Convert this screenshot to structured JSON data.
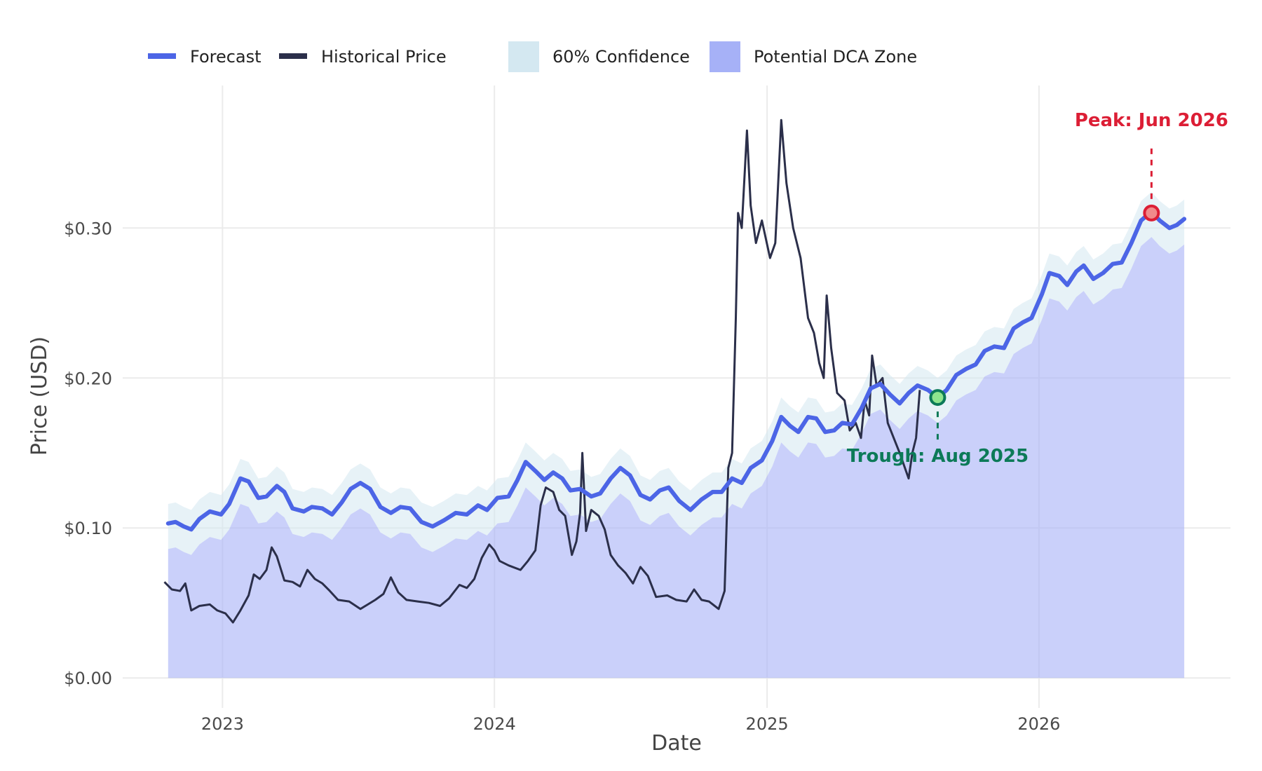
{
  "chart_data": {
    "type": "line",
    "title": "",
    "xlabel": "Date",
    "ylabel": "Price (USD)",
    "x_domain": [
      "2022-08-20",
      "2026-09-15"
    ],
    "ylim": [
      -0.02,
      0.395
    ],
    "grid": true,
    "legend_position": "top-left",
    "y_ticks": [
      {
        "value": 0.0,
        "label": "$0.00"
      },
      {
        "value": 0.1,
        "label": "$0.10"
      },
      {
        "value": 0.2,
        "label": "$0.20"
      },
      {
        "value": 0.3,
        "label": "$0.30"
      }
    ],
    "x_ticks": [
      {
        "date": "2023-01-01",
        "label": "2023"
      },
      {
        "date": "2024-01-01",
        "label": "2024"
      },
      {
        "date": "2025-01-01",
        "label": "2025"
      },
      {
        "date": "2026-01-01",
        "label": "2026"
      }
    ],
    "legend": [
      {
        "key": "forecast",
        "label": "Forecast",
        "kind": "line",
        "color": "#4c65e6"
      },
      {
        "key": "historical",
        "label": "Historical Price",
        "kind": "line",
        "color": "#2b2f4a"
      },
      {
        "key": "confidence",
        "label": "60% Confidence",
        "kind": "fill",
        "color": "#d4e8f1"
      },
      {
        "key": "dca",
        "label": "Potential DCA Zone",
        "kind": "fill",
        "color": "#a6b1f7"
      }
    ],
    "series": [
      {
        "name": "Historical Price",
        "color": "#2b2f4a",
        "points": [
          [
            "2022-10-15",
            0.064
          ],
          [
            "2022-10-25",
            0.059
          ],
          [
            "2022-11-05",
            0.058
          ],
          [
            "2022-11-12",
            0.063
          ],
          [
            "2022-11-20",
            0.045
          ],
          [
            "2022-12-01",
            0.048
          ],
          [
            "2022-12-15",
            0.049
          ],
          [
            "2022-12-25",
            0.045
          ],
          [
            "2023-01-05",
            0.043
          ],
          [
            "2023-01-15",
            0.037
          ],
          [
            "2023-01-25",
            0.045
          ],
          [
            "2023-02-05",
            0.055
          ],
          [
            "2023-02-12",
            0.069
          ],
          [
            "2023-02-20",
            0.066
          ],
          [
            "2023-03-01",
            0.072
          ],
          [
            "2023-03-08",
            0.087
          ],
          [
            "2023-03-15",
            0.081
          ],
          [
            "2023-03-25",
            0.065
          ],
          [
            "2023-04-05",
            0.064
          ],
          [
            "2023-04-15",
            0.061
          ],
          [
            "2023-04-25",
            0.072
          ],
          [
            "2023-05-05",
            0.066
          ],
          [
            "2023-05-15",
            0.063
          ],
          [
            "2023-05-25",
            0.058
          ],
          [
            "2023-06-05",
            0.052
          ],
          [
            "2023-06-20",
            0.051
          ],
          [
            "2023-07-05",
            0.046
          ],
          [
            "2023-07-15",
            0.049
          ],
          [
            "2023-07-25",
            0.052
          ],
          [
            "2023-08-05",
            0.056
          ],
          [
            "2023-08-15",
            0.067
          ],
          [
            "2023-08-25",
            0.057
          ],
          [
            "2023-09-05",
            0.052
          ],
          [
            "2023-09-20",
            0.051
          ],
          [
            "2023-10-05",
            0.05
          ],
          [
            "2023-10-20",
            0.048
          ],
          [
            "2023-11-01",
            0.053
          ],
          [
            "2023-11-15",
            0.062
          ],
          [
            "2023-11-25",
            0.06
          ],
          [
            "2023-12-05",
            0.066
          ],
          [
            "2023-12-15",
            0.08
          ],
          [
            "2023-12-25",
            0.089
          ],
          [
            "2024-01-01",
            0.085
          ],
          [
            "2024-01-08",
            0.078
          ],
          [
            "2024-01-20",
            0.075
          ],
          [
            "2024-02-05",
            0.072
          ],
          [
            "2024-02-15",
            0.078
          ],
          [
            "2024-02-25",
            0.085
          ],
          [
            "2024-03-03",
            0.115
          ],
          [
            "2024-03-10",
            0.127
          ],
          [
            "2024-03-20",
            0.124
          ],
          [
            "2024-03-28",
            0.112
          ],
          [
            "2024-04-05",
            0.108
          ],
          [
            "2024-04-14",
            0.082
          ],
          [
            "2024-04-20",
            0.091
          ],
          [
            "2024-04-25",
            0.11
          ],
          [
            "2024-04-28",
            0.15
          ],
          [
            "2024-05-03",
            0.098
          ],
          [
            "2024-05-10",
            0.112
          ],
          [
            "2024-05-20",
            0.108
          ],
          [
            "2024-05-28",
            0.099
          ],
          [
            "2024-06-05",
            0.082
          ],
          [
            "2024-06-15",
            0.075
          ],
          [
            "2024-06-25",
            0.07
          ],
          [
            "2024-07-05",
            0.063
          ],
          [
            "2024-07-15",
            0.074
          ],
          [
            "2024-07-25",
            0.068
          ],
          [
            "2024-08-05",
            0.054
          ],
          [
            "2024-08-20",
            0.055
          ],
          [
            "2024-09-01",
            0.052
          ],
          [
            "2024-09-15",
            0.051
          ],
          [
            "2024-09-25",
            0.059
          ],
          [
            "2024-10-05",
            0.052
          ],
          [
            "2024-10-15",
            0.051
          ],
          [
            "2024-10-28",
            0.046
          ],
          [
            "2024-11-05",
            0.058
          ],
          [
            "2024-11-10",
            0.14
          ],
          [
            "2024-11-15",
            0.15
          ],
          [
            "2024-11-20",
            0.24
          ],
          [
            "2024-11-23",
            0.31
          ],
          [
            "2024-11-28",
            0.3
          ],
          [
            "2024-12-05",
            0.365
          ],
          [
            "2024-12-10",
            0.315
          ],
          [
            "2024-12-17",
            0.29
          ],
          [
            "2024-12-25",
            0.305
          ],
          [
            "2025-01-05",
            0.28
          ],
          [
            "2025-01-12",
            0.29
          ],
          [
            "2025-01-20",
            0.372
          ],
          [
            "2025-01-27",
            0.33
          ],
          [
            "2025-02-05",
            0.3
          ],
          [
            "2025-02-15",
            0.28
          ],
          [
            "2025-02-25",
            0.24
          ],
          [
            "2025-03-05",
            0.23
          ],
          [
            "2025-03-12",
            0.21
          ],
          [
            "2025-03-18",
            0.2
          ],
          [
            "2025-03-22",
            0.255
          ],
          [
            "2025-03-28",
            0.22
          ],
          [
            "2025-04-05",
            0.19
          ],
          [
            "2025-04-15",
            0.185
          ],
          [
            "2025-04-22",
            0.165
          ],
          [
            "2025-04-30",
            0.17
          ],
          [
            "2025-05-07",
            0.16
          ],
          [
            "2025-05-12",
            0.185
          ],
          [
            "2025-05-18",
            0.175
          ],
          [
            "2025-05-22",
            0.215
          ],
          [
            "2025-05-28",
            0.195
          ],
          [
            "2025-06-05",
            0.2
          ],
          [
            "2025-06-12",
            0.17
          ],
          [
            "2025-06-20",
            0.16
          ],
          [
            "2025-06-28",
            0.15
          ],
          [
            "2025-07-05",
            0.14
          ],
          [
            "2025-07-10",
            0.133
          ],
          [
            "2025-07-15",
            0.15
          ],
          [
            "2025-07-20",
            0.16
          ],
          [
            "2025-07-25",
            0.192
          ]
        ]
      },
      {
        "name": "Forecast",
        "color": "#4c65e6",
        "points": [
          [
            "2022-10-20",
            0.103
          ],
          [
            "2022-10-30",
            0.104
          ],
          [
            "2022-11-10",
            0.101
          ],
          [
            "2022-11-20",
            0.099
          ],
          [
            "2022-12-01",
            0.106
          ],
          [
            "2022-12-15",
            0.111
          ],
          [
            "2022-12-30",
            0.109
          ],
          [
            "2023-01-10",
            0.116
          ],
          [
            "2023-01-25",
            0.133
          ],
          [
            "2023-02-05",
            0.131
          ],
          [
            "2023-02-18",
            0.12
          ],
          [
            "2023-03-01",
            0.121
          ],
          [
            "2023-03-15",
            0.128
          ],
          [
            "2023-03-25",
            0.124
          ],
          [
            "2023-04-05",
            0.113
          ],
          [
            "2023-04-20",
            0.111
          ],
          [
            "2023-05-01",
            0.114
          ],
          [
            "2023-05-15",
            0.113
          ],
          [
            "2023-05-28",
            0.109
          ],
          [
            "2023-06-10",
            0.117
          ],
          [
            "2023-06-22",
            0.126
          ],
          [
            "2023-07-05",
            0.13
          ],
          [
            "2023-07-18",
            0.126
          ],
          [
            "2023-08-01",
            0.114
          ],
          [
            "2023-08-15",
            0.11
          ],
          [
            "2023-08-28",
            0.114
          ],
          [
            "2023-09-10",
            0.113
          ],
          [
            "2023-09-25",
            0.104
          ],
          [
            "2023-10-10",
            0.101
          ],
          [
            "2023-10-25",
            0.105
          ],
          [
            "2023-11-10",
            0.11
          ],
          [
            "2023-11-25",
            0.109
          ],
          [
            "2023-12-10",
            0.115
          ],
          [
            "2023-12-22",
            0.112
          ],
          [
            "2024-01-05",
            0.12
          ],
          [
            "2024-01-20",
            0.121
          ],
          [
            "2024-02-01",
            0.132
          ],
          [
            "2024-02-12",
            0.144
          ],
          [
            "2024-02-25",
            0.138
          ],
          [
            "2024-03-08",
            0.132
          ],
          [
            "2024-03-20",
            0.137
          ],
          [
            "2024-04-01",
            0.133
          ],
          [
            "2024-04-12",
            0.125
          ],
          [
            "2024-04-25",
            0.126
          ],
          [
            "2024-05-10",
            0.121
          ],
          [
            "2024-05-22",
            0.123
          ],
          [
            "2024-06-05",
            0.133
          ],
          [
            "2024-06-18",
            0.14
          ],
          [
            "2024-07-01",
            0.135
          ],
          [
            "2024-07-15",
            0.122
          ],
          [
            "2024-07-28",
            0.119
          ],
          [
            "2024-08-10",
            0.125
          ],
          [
            "2024-08-22",
            0.127
          ],
          [
            "2024-09-05",
            0.118
          ],
          [
            "2024-09-20",
            0.112
          ],
          [
            "2024-10-05",
            0.119
          ],
          [
            "2024-10-20",
            0.124
          ],
          [
            "2024-11-01",
            0.124
          ],
          [
            "2024-11-15",
            0.133
          ],
          [
            "2024-11-28",
            0.13
          ],
          [
            "2024-12-10",
            0.14
          ],
          [
            "2024-12-25",
            0.145
          ],
          [
            "2025-01-08",
            0.158
          ],
          [
            "2025-01-20",
            0.174
          ],
          [
            "2025-02-01",
            0.168
          ],
          [
            "2025-02-12",
            0.164
          ],
          [
            "2025-02-25",
            0.174
          ],
          [
            "2025-03-08",
            0.173
          ],
          [
            "2025-03-20",
            0.164
          ],
          [
            "2025-04-01",
            0.165
          ],
          [
            "2025-04-12",
            0.17
          ],
          [
            "2025-04-25",
            0.169
          ],
          [
            "2025-05-08",
            0.18
          ],
          [
            "2025-05-20",
            0.193
          ],
          [
            "2025-06-02",
            0.196
          ],
          [
            "2025-06-15",
            0.189
          ],
          [
            "2025-06-28",
            0.183
          ],
          [
            "2025-07-10",
            0.19
          ],
          [
            "2025-07-22",
            0.195
          ],
          [
            "2025-08-05",
            0.192
          ],
          [
            "2025-08-18",
            0.187
          ],
          [
            "2025-08-30",
            0.192
          ],
          [
            "2025-09-12",
            0.202
          ],
          [
            "2025-09-25",
            0.206
          ],
          [
            "2025-10-08",
            0.209
          ],
          [
            "2025-10-20",
            0.218
          ],
          [
            "2025-11-02",
            0.221
          ],
          [
            "2025-11-15",
            0.22
          ],
          [
            "2025-11-28",
            0.233
          ],
          [
            "2025-12-10",
            0.237
          ],
          [
            "2025-12-22",
            0.24
          ],
          [
            "2026-01-05",
            0.256
          ],
          [
            "2026-01-15",
            0.27
          ],
          [
            "2026-01-28",
            0.268
          ],
          [
            "2026-02-08",
            0.262
          ],
          [
            "2026-02-20",
            0.271
          ],
          [
            "2026-03-02",
            0.275
          ],
          [
            "2026-03-15",
            0.266
          ],
          [
            "2026-03-28",
            0.27
          ],
          [
            "2026-04-10",
            0.276
          ],
          [
            "2026-04-22",
            0.277
          ],
          [
            "2026-05-05",
            0.29
          ],
          [
            "2026-05-18",
            0.305
          ],
          [
            "2026-06-01",
            0.311
          ],
          [
            "2026-06-12",
            0.305
          ],
          [
            "2026-06-25",
            0.3
          ],
          [
            "2026-07-05",
            0.302
          ],
          [
            "2026-07-15",
            0.306
          ]
        ]
      }
    ],
    "confidence_offset": {
      "upper": 0.013,
      "lower": -0.017
    },
    "annotations": [
      {
        "key": "peak",
        "label": "Peak: Jun 2026",
        "date": "2026-06-01",
        "value": 0.31,
        "color": "#dc1e35",
        "fill": "#f18b8b"
      },
      {
        "key": "trough",
        "label": "Trough: Aug 2025",
        "date": "2025-08-18",
        "value": 0.187,
        "color": "#0c7a58",
        "fill": "#8ee58e"
      }
    ]
  }
}
